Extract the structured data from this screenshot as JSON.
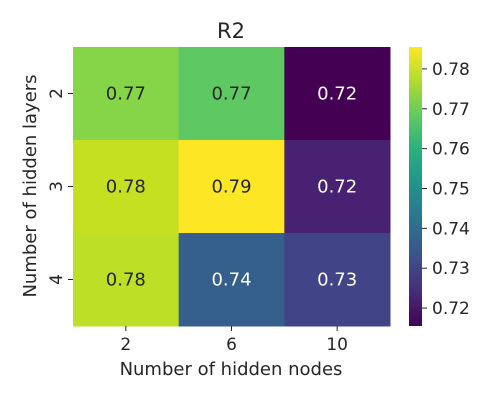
{
  "chart_data": {
    "type": "heatmap",
    "title": "R2",
    "xlabel": "Number of hidden nodes",
    "ylabel": "Number of hidden layers",
    "x_categories": [
      "2",
      "6",
      "10"
    ],
    "y_categories": [
      "2",
      "3",
      "4"
    ],
    "values": [
      [
        0.77,
        0.77,
        0.72
      ],
      [
        0.78,
        0.79,
        0.72
      ],
      [
        0.78,
        0.74,
        0.73
      ]
    ],
    "cell_colors": [
      [
        "#86d549",
        "#5ec962",
        "#440154"
      ],
      [
        "#c5e021",
        "#fde725",
        "#482173"
      ],
      [
        "#bddf26",
        "#355f8d",
        "#414487"
      ]
    ],
    "cell_label_colors": [
      [
        "#262626",
        "#262626",
        "#ffffff"
      ],
      [
        "#262626",
        "#262626",
        "#ffffff"
      ],
      [
        "#262626",
        "#ffffff",
        "#ffffff"
      ]
    ],
    "colorbar": {
      "colormap": "viridis",
      "range": [
        0.7155,
        0.7855
      ],
      "ticks": [
        "0.72",
        "0.73",
        "0.74",
        "0.75",
        "0.76",
        "0.77",
        "0.78"
      ]
    }
  }
}
